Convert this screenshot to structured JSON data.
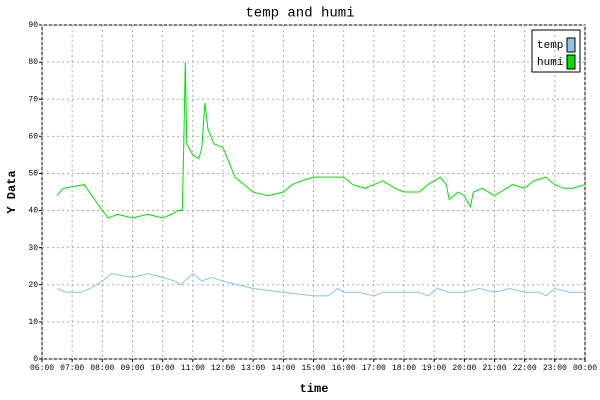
{
  "chart_data": {
    "type": "line",
    "title": "temp and humi",
    "xlabel": "time",
    "ylabel": "Y Data",
    "xlim": [
      6,
      24
    ],
    "ylim": [
      0,
      90
    ],
    "xticks": [
      {
        "value": 6,
        "label": "06:00"
      },
      {
        "value": 7,
        "label": "07:00"
      },
      {
        "value": 8,
        "label": "08:00"
      },
      {
        "value": 9,
        "label": "09:00"
      },
      {
        "value": 10,
        "label": "10:00"
      },
      {
        "value": 11,
        "label": "11:00"
      },
      {
        "value": 12,
        "label": "12:00"
      },
      {
        "value": 13,
        "label": "13:00"
      },
      {
        "value": 14,
        "label": "14:00"
      },
      {
        "value": 15,
        "label": "15:00"
      },
      {
        "value": 16,
        "label": "16:00"
      },
      {
        "value": 17,
        "label": "17:00"
      },
      {
        "value": 18,
        "label": "18:00"
      },
      {
        "value": 19,
        "label": "19:00"
      },
      {
        "value": 20,
        "label": "20:00"
      },
      {
        "value": 21,
        "label": "21:00"
      },
      {
        "value": 22,
        "label": "22:00"
      },
      {
        "value": 23,
        "label": "23:00"
      },
      {
        "value": 24,
        "label": "00:00"
      }
    ],
    "yticks": [
      0,
      10,
      20,
      30,
      40,
      50,
      60,
      70,
      80,
      90
    ],
    "grid": true,
    "legend": "upper right",
    "series": [
      {
        "name": "temp",
        "color": "#87c4e6",
        "x": [
          6.5,
          6.8,
          7.3,
          7.6,
          8,
          8.3,
          9,
          9.5,
          10,
          10.4,
          10.6,
          11,
          11.3,
          11.6,
          12,
          12.5,
          13,
          14,
          15,
          15.5,
          15.8,
          16,
          16.5,
          17,
          17.3,
          17.6,
          18,
          18.5,
          18.8,
          19.1,
          19.5,
          20,
          20.5,
          21,
          21.5,
          22,
          22.5,
          22.7,
          23,
          23.5,
          24
        ],
        "values": [
          19,
          18,
          18,
          19,
          21,
          23,
          22,
          23,
          22,
          21,
          20,
          23,
          21,
          22,
          21,
          20,
          19,
          18,
          17,
          17,
          19,
          18,
          18,
          17,
          18,
          18,
          18,
          18,
          17,
          19,
          18,
          18,
          19,
          18,
          19,
          18,
          18,
          17,
          19,
          18,
          18
        ]
      },
      {
        "name": "humi",
        "color": "#00e000",
        "x": [
          6.5,
          6.7,
          7.4,
          8,
          8.2,
          8.5,
          9,
          9.5,
          10,
          10.3,
          10.5,
          10.65,
          10.7,
          10.75,
          10.8,
          11,
          11.2,
          11.3,
          11.4,
          11.5,
          11.7,
          12,
          12.2,
          12.4,
          12.7,
          13,
          13.5,
          14,
          14.3,
          14.6,
          15,
          15.5,
          16,
          16.3,
          16.7,
          17,
          17.3,
          17.7,
          18,
          18.5,
          18.8,
          19.2,
          19.4,
          19.5,
          19.8,
          20,
          20.2,
          20.3,
          20.6,
          21,
          21.4,
          21.6,
          22,
          22.3,
          22.7,
          23,
          23.3,
          23.6,
          24
        ],
        "values": [
          44,
          46,
          47,
          40,
          38,
          39,
          38,
          39,
          38,
          39,
          40,
          40,
          58,
          80,
          58,
          55,
          54,
          57,
          69,
          62,
          58,
          57,
          53,
          49,
          47,
          45,
          44,
          45,
          47,
          48,
          49,
          49,
          49,
          47,
          46,
          47,
          48,
          46,
          45,
          45,
          47,
          49,
          47,
          43,
          45,
          44,
          41,
          45,
          46,
          44,
          46,
          47,
          46,
          48,
          49,
          47,
          46,
          46,
          47
        ]
      }
    ]
  }
}
